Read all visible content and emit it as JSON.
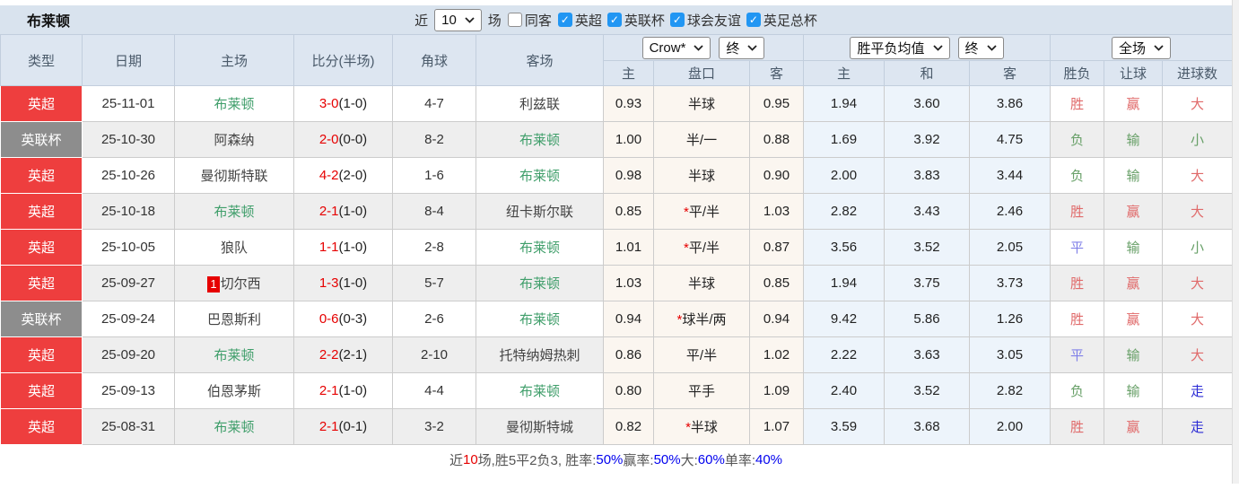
{
  "colors": {
    "red-badge": "#ee3e3e",
    "gray-badge": "#8d8d8d",
    "team-green": "#3f9e6a",
    "score-red": "#e60000",
    "win-red": "#e06a6a",
    "lose-green": "#68a068",
    "draw-blue": "#8080e8",
    "go-indigo": "#2b2bd5",
    "sum-blue": "#0000ee",
    "topbar-bg": "#d9e3ee",
    "header-bg": "#dde6f1",
    "stripe-bg": "#eeeeee",
    "crow-bg": "#fbf6f0",
    "avg-bg": "#edf4fb"
  },
  "topbar": {
    "team": "布莱顿",
    "near_label": "近",
    "matches_select": "10",
    "matches_label": "场",
    "same_opponent": {
      "label": "同客",
      "checked": false
    },
    "filters": [
      {
        "label": "英超",
        "checked": true
      },
      {
        "label": "英联杯",
        "checked": true
      },
      {
        "label": "球会友谊",
        "checked": true
      },
      {
        "label": "英足总杯",
        "checked": true
      }
    ]
  },
  "table": {
    "headers_left": [
      "类型",
      "日期",
      "主场",
      "比分(半场)",
      "角球",
      "客场"
    ],
    "group1": {
      "select1": "Crow*",
      "select2": "终",
      "cols": [
        "主",
        "盘口",
        "客"
      ]
    },
    "group2": {
      "select1": "胜平负均值",
      "select2": "终",
      "cols": [
        "主",
        "和",
        "客"
      ]
    },
    "group3": {
      "select1": "全场",
      "cols": [
        "胜负",
        "让球",
        "进球数"
      ]
    },
    "rows": [
      {
        "type": "英超",
        "type_color": "red",
        "date": "25-11-01",
        "home": "布莱顿",
        "home_hl": true,
        "home_rank": "",
        "score": "3-0",
        "half": "(1-0)",
        "corner": "4-7",
        "away": "利兹联",
        "away_hl": false,
        "odds_home": "0.93",
        "handicap_star": false,
        "handicap": "半球",
        "odds_away": "0.95",
        "avg_home": "1.94",
        "avg_draw": "3.60",
        "avg_away": "3.86",
        "result": {
          "text": "胜",
          "color": "red"
        },
        "handicap_result": {
          "text": "赢",
          "color": "red"
        },
        "goals": {
          "text": "大",
          "color": "red"
        }
      },
      {
        "type": "英联杯",
        "type_color": "gray",
        "date": "25-10-30",
        "home": "阿森纳",
        "home_hl": false,
        "home_rank": "",
        "score": "2-0",
        "half": "(0-0)",
        "corner": "8-2",
        "away": "布莱顿",
        "away_hl": true,
        "odds_home": "1.00",
        "handicap_star": false,
        "handicap": "半/一",
        "odds_away": "0.88",
        "avg_home": "1.69",
        "avg_draw": "3.92",
        "avg_away": "4.75",
        "result": {
          "text": "负",
          "color": "green"
        },
        "handicap_result": {
          "text": "输",
          "color": "green"
        },
        "goals": {
          "text": "小",
          "color": "green"
        }
      },
      {
        "type": "英超",
        "type_color": "red",
        "date": "25-10-26",
        "home": "曼彻斯特联",
        "home_hl": false,
        "home_rank": "",
        "score": "4-2",
        "half": "(2-0)",
        "corner": "1-6",
        "away": "布莱顿",
        "away_hl": true,
        "odds_home": "0.98",
        "handicap_star": false,
        "handicap": "半球",
        "odds_away": "0.90",
        "avg_home": "2.00",
        "avg_draw": "3.83",
        "avg_away": "3.44",
        "result": {
          "text": "负",
          "color": "green"
        },
        "handicap_result": {
          "text": "输",
          "color": "green"
        },
        "goals": {
          "text": "大",
          "color": "red"
        }
      },
      {
        "type": "英超",
        "type_color": "red",
        "date": "25-10-18",
        "home": "布莱顿",
        "home_hl": true,
        "home_rank": "",
        "score": "2-1",
        "half": "(1-0)",
        "corner": "8-4",
        "away": "纽卡斯尔联",
        "away_hl": false,
        "odds_home": "0.85",
        "handicap_star": true,
        "handicap": "平/半",
        "odds_away": "1.03",
        "avg_home": "2.82",
        "avg_draw": "3.43",
        "avg_away": "2.46",
        "result": {
          "text": "胜",
          "color": "red"
        },
        "handicap_result": {
          "text": "赢",
          "color": "red"
        },
        "goals": {
          "text": "大",
          "color": "red"
        }
      },
      {
        "type": "英超",
        "type_color": "red",
        "date": "25-10-05",
        "home": "狼队",
        "home_hl": false,
        "home_rank": "",
        "score": "1-1",
        "half": "(1-0)",
        "corner": "2-8",
        "away": "布莱顿",
        "away_hl": true,
        "odds_home": "1.01",
        "handicap_star": true,
        "handicap": "平/半",
        "odds_away": "0.87",
        "avg_home": "3.56",
        "avg_draw": "3.52",
        "avg_away": "2.05",
        "result": {
          "text": "平",
          "color": "blue"
        },
        "handicap_result": {
          "text": "输",
          "color": "green"
        },
        "goals": {
          "text": "小",
          "color": "green"
        }
      },
      {
        "type": "英超",
        "type_color": "red",
        "date": "25-09-27",
        "home": "切尔西",
        "home_hl": false,
        "home_rank": "1",
        "score": "1-3",
        "half": "(1-0)",
        "corner": "5-7",
        "away": "布莱顿",
        "away_hl": true,
        "odds_home": "1.03",
        "handicap_star": false,
        "handicap": "半球",
        "odds_away": "0.85",
        "avg_home": "1.94",
        "avg_draw": "3.75",
        "avg_away": "3.73",
        "result": {
          "text": "胜",
          "color": "red"
        },
        "handicap_result": {
          "text": "赢",
          "color": "red"
        },
        "goals": {
          "text": "大",
          "color": "red"
        }
      },
      {
        "type": "英联杯",
        "type_color": "gray",
        "date": "25-09-24",
        "home": "巴恩斯利",
        "home_hl": false,
        "home_rank": "",
        "score": "0-6",
        "half": "(0-3)",
        "corner": "2-6",
        "away": "布莱顿",
        "away_hl": true,
        "odds_home": "0.94",
        "handicap_star": true,
        "handicap": "球半/两",
        "odds_away": "0.94",
        "avg_home": "9.42",
        "avg_draw": "5.86",
        "avg_away": "1.26",
        "result": {
          "text": "胜",
          "color": "red"
        },
        "handicap_result": {
          "text": "赢",
          "color": "red"
        },
        "goals": {
          "text": "大",
          "color": "red"
        }
      },
      {
        "type": "英超",
        "type_color": "red",
        "date": "25-09-20",
        "home": "布莱顿",
        "home_hl": true,
        "home_rank": "",
        "score": "2-2",
        "half": "(2-1)",
        "corner": "2-10",
        "away": "托特纳姆热刺",
        "away_hl": false,
        "odds_home": "0.86",
        "handicap_star": false,
        "handicap": "平/半",
        "odds_away": "1.02",
        "avg_home": "2.22",
        "avg_draw": "3.63",
        "avg_away": "3.05",
        "result": {
          "text": "平",
          "color": "blue"
        },
        "handicap_result": {
          "text": "输",
          "color": "green"
        },
        "goals": {
          "text": "大",
          "color": "red"
        }
      },
      {
        "type": "英超",
        "type_color": "red",
        "date": "25-09-13",
        "home": "伯恩茅斯",
        "home_hl": false,
        "home_rank": "",
        "score": "2-1",
        "half": "(1-0)",
        "corner": "4-4",
        "away": "布莱顿",
        "away_hl": true,
        "odds_home": "0.80",
        "handicap_star": false,
        "handicap": "平手",
        "odds_away": "1.09",
        "avg_home": "2.40",
        "avg_draw": "3.52",
        "avg_away": "2.82",
        "result": {
          "text": "负",
          "color": "green"
        },
        "handicap_result": {
          "text": "输",
          "color": "green"
        },
        "goals": {
          "text": "走",
          "color": "indigo"
        }
      },
      {
        "type": "英超",
        "type_color": "red",
        "date": "25-08-31",
        "home": "布莱顿",
        "home_hl": true,
        "home_rank": "",
        "score": "2-1",
        "half": "(0-1)",
        "corner": "3-2",
        "away": "曼彻斯特城",
        "away_hl": false,
        "odds_home": "0.82",
        "handicap_star": true,
        "handicap": "半球",
        "odds_away": "1.07",
        "avg_home": "3.59",
        "avg_draw": "3.68",
        "avg_away": "2.00",
        "result": {
          "text": "胜",
          "color": "red"
        },
        "handicap_result": {
          "text": "赢",
          "color": "red"
        },
        "goals": {
          "text": "走",
          "color": "indigo"
        }
      }
    ]
  },
  "summary": {
    "parts": [
      {
        "t": "近",
        "c": "dark"
      },
      {
        "t": "10",
        "c": "red"
      },
      {
        "t": "场,胜5平2负3, 胜率:",
        "c": "dark"
      },
      {
        "t": "50%",
        "c": "blue"
      },
      {
        "t": " 赢率:",
        "c": "dark"
      },
      {
        "t": "50%",
        "c": "blue"
      },
      {
        "t": " 大:",
        "c": "dark"
      },
      {
        "t": "60%",
        "c": "blue"
      },
      {
        "t": " 单率:",
        "c": "dark"
      },
      {
        "t": "40%",
        "c": "blue"
      }
    ]
  }
}
